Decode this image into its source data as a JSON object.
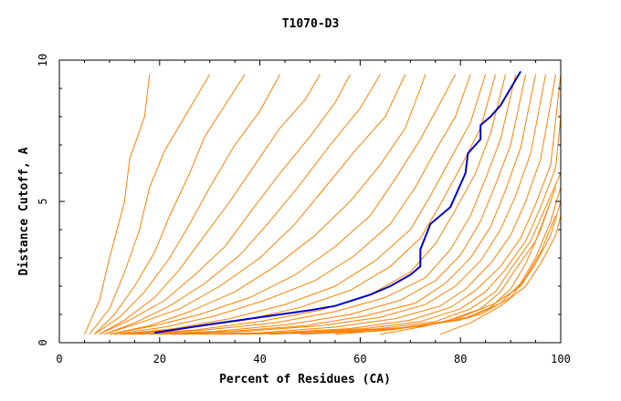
{
  "chart_data": {
    "type": "line",
    "title": "T1070-D3",
    "xlabel": "Percent of Residues (CA)",
    "ylabel": "Distance Cutoff, A",
    "xlim": [
      0,
      100
    ],
    "ylim": [
      0,
      10
    ],
    "x_ticks": [
      0,
      20,
      40,
      60,
      80,
      100
    ],
    "y_ticks": [
      0,
      5,
      10
    ],
    "colors": {
      "background_series": "#ff8000",
      "highlight": "#0000cc",
      "axes": "#000000"
    },
    "grid": false,
    "highlight_series": {
      "points": [
        [
          19,
          0.35
        ],
        [
          30,
          0.65
        ],
        [
          40,
          0.9
        ],
        [
          50,
          1.15
        ],
        [
          55,
          1.3
        ],
        [
          62,
          1.7
        ],
        [
          66,
          2.0
        ],
        [
          70,
          2.4
        ],
        [
          72,
          2.7
        ],
        [
          72,
          3.3
        ],
        [
          74,
          4.2
        ],
        [
          78,
          4.8
        ],
        [
          80,
          5.6
        ],
        [
          81,
          6.0
        ],
        [
          81.5,
          6.7
        ],
        [
          83,
          7.0
        ],
        [
          84,
          7.2
        ],
        [
          84,
          7.7
        ],
        [
          86,
          8.0
        ],
        [
          88,
          8.4
        ],
        [
          90,
          9.0
        ],
        [
          92,
          9.6
        ]
      ]
    },
    "background_series": [
      {
        "points": [
          [
            5,
            0.3
          ],
          [
            8,
            1.5
          ],
          [
            10,
            3.0
          ],
          [
            13,
            5.0
          ],
          [
            14,
            6.5
          ],
          [
            17,
            8.0
          ],
          [
            18,
            9.5
          ]
        ]
      },
      {
        "points": [
          [
            6,
            0.3
          ],
          [
            10,
            1.2
          ],
          [
            13,
            2.5
          ],
          [
            16,
            4.0
          ],
          [
            18,
            5.5
          ],
          [
            21,
            6.8
          ],
          [
            25,
            8.0
          ],
          [
            30,
            9.5
          ]
        ]
      },
      {
        "points": [
          [
            7,
            0.3
          ],
          [
            11,
            1.0
          ],
          [
            15,
            2.0
          ],
          [
            19,
            3.2
          ],
          [
            22,
            4.5
          ],
          [
            26,
            6.0
          ],
          [
            29,
            7.3
          ],
          [
            33,
            8.4
          ],
          [
            37,
            9.5
          ]
        ]
      },
      {
        "points": [
          [
            7,
            0.3
          ],
          [
            12,
            0.9
          ],
          [
            17,
            1.8
          ],
          [
            22,
            3.0
          ],
          [
            26,
            4.2
          ],
          [
            30,
            5.5
          ],
          [
            35,
            7.0
          ],
          [
            40,
            8.2
          ],
          [
            44,
            9.5
          ]
        ]
      },
      {
        "points": [
          [
            8,
            0.3
          ],
          [
            13,
            0.8
          ],
          [
            19,
            1.6
          ],
          [
            24,
            2.6
          ],
          [
            29,
            3.8
          ],
          [
            34,
            5.0
          ],
          [
            39,
            6.3
          ],
          [
            44,
            7.6
          ],
          [
            49,
            8.6
          ],
          [
            52,
            9.5
          ]
        ]
      },
      {
        "points": [
          [
            8,
            0.3
          ],
          [
            14,
            0.8
          ],
          [
            21,
            1.5
          ],
          [
            27,
            2.4
          ],
          [
            33,
            3.4
          ],
          [
            38,
            4.6
          ],
          [
            44,
            6.0
          ],
          [
            50,
            7.3
          ],
          [
            55,
            8.5
          ],
          [
            58,
            9.5
          ]
        ]
      },
      {
        "points": [
          [
            9,
            0.3
          ],
          [
            15,
            0.7
          ],
          [
            22,
            1.3
          ],
          [
            29,
            2.1
          ],
          [
            36,
            3.1
          ],
          [
            42,
            4.3
          ],
          [
            48,
            5.6
          ],
          [
            54,
            7.0
          ],
          [
            60,
            8.3
          ],
          [
            64,
            9.5
          ]
        ]
      },
      {
        "points": [
          [
            9,
            0.3
          ],
          [
            16,
            0.7
          ],
          [
            24,
            1.2
          ],
          [
            32,
            2.0
          ],
          [
            40,
            3.0
          ],
          [
            47,
            4.2
          ],
          [
            53,
            5.5
          ],
          [
            59,
            6.8
          ],
          [
            65,
            8.0
          ],
          [
            69,
            9.5
          ]
        ]
      },
      {
        "points": [
          [
            10,
            0.3
          ],
          [
            18,
            0.6
          ],
          [
            26,
            1.1
          ],
          [
            35,
            1.8
          ],
          [
            43,
            2.7
          ],
          [
            51,
            3.8
          ],
          [
            58,
            5.0
          ],
          [
            64,
            6.3
          ],
          [
            69,
            7.6
          ],
          [
            72,
            9.0
          ],
          [
            73,
            9.5
          ]
        ]
      },
      {
        "points": [
          [
            10,
            0.3
          ],
          [
            19,
            0.6
          ],
          [
            28,
            1.0
          ],
          [
            38,
            1.6
          ],
          [
            47,
            2.4
          ],
          [
            55,
            3.4
          ],
          [
            62,
            4.5
          ],
          [
            67,
            5.8
          ],
          [
            72,
            7.2
          ],
          [
            76,
            8.5
          ],
          [
            79,
            9.5
          ]
        ]
      },
      {
        "points": [
          [
            11,
            0.3
          ],
          [
            21,
            0.55
          ],
          [
            31,
            0.95
          ],
          [
            41,
            1.5
          ],
          [
            51,
            2.2
          ],
          [
            59,
            3.1
          ],
          [
            66,
            4.2
          ],
          [
            71,
            5.5
          ],
          [
            75,
            6.8
          ],
          [
            79,
            8.0
          ],
          [
            82,
            9.5
          ]
        ]
      },
      {
        "points": [
          [
            12,
            0.3
          ],
          [
            23,
            0.5
          ],
          [
            34,
            0.85
          ],
          [
            45,
            1.35
          ],
          [
            55,
            2.0
          ],
          [
            63,
            2.9
          ],
          [
            70,
            4.0
          ],
          [
            74,
            5.2
          ],
          [
            78,
            6.5
          ],
          [
            82,
            7.8
          ],
          [
            85,
            9.5
          ]
        ]
      },
      {
        "points": [
          [
            13,
            0.3
          ],
          [
            25,
            0.5
          ],
          [
            37,
            0.8
          ],
          [
            48,
            1.25
          ],
          [
            58,
            1.85
          ],
          [
            66,
            2.7
          ],
          [
            72,
            3.7
          ],
          [
            76,
            4.9
          ],
          [
            80,
            6.2
          ],
          [
            84,
            7.6
          ],
          [
            87,
            9.5
          ]
        ]
      },
      {
        "points": [
          [
            14,
            0.3
          ],
          [
            27,
            0.45
          ],
          [
            40,
            0.75
          ],
          [
            52,
            1.15
          ],
          [
            62,
            1.7
          ],
          [
            70,
            2.5
          ],
          [
            75,
            3.5
          ],
          [
            79,
            4.7
          ],
          [
            83,
            6.0
          ],
          [
            86,
            7.4
          ],
          [
            89,
            9.5
          ]
        ]
      },
      {
        "points": [
          [
            15,
            0.3
          ],
          [
            29,
            0.45
          ],
          [
            43,
            0.7
          ],
          [
            55,
            1.1
          ],
          [
            65,
            1.6
          ],
          [
            73,
            2.3
          ],
          [
            78,
            3.3
          ],
          [
            82,
            4.5
          ],
          [
            85,
            5.8
          ],
          [
            88,
            7.2
          ],
          [
            91,
            9.5
          ]
        ]
      },
      {
        "points": [
          [
            16,
            0.3
          ],
          [
            31,
            0.4
          ],
          [
            46,
            0.65
          ],
          [
            58,
            1.0
          ],
          [
            68,
            1.5
          ],
          [
            75,
            2.2
          ],
          [
            80,
            3.1
          ],
          [
            84,
            4.3
          ],
          [
            87,
            5.6
          ],
          [
            90,
            7.0
          ],
          [
            93,
            9.5
          ]
        ]
      },
      {
        "points": [
          [
            18,
            0.3
          ],
          [
            34,
            0.4
          ],
          [
            49,
            0.6
          ],
          [
            61,
            0.95
          ],
          [
            71,
            1.4
          ],
          [
            77,
            2.1
          ],
          [
            82,
            3.0
          ],
          [
            86,
            4.1
          ],
          [
            89,
            5.4
          ],
          [
            92,
            6.9
          ],
          [
            95,
            9.5
          ]
        ]
      },
      {
        "points": [
          [
            20,
            0.3
          ],
          [
            37,
            0.4
          ],
          [
            52,
            0.6
          ],
          [
            64,
            0.9
          ],
          [
            73,
            1.35
          ],
          [
            79,
            2.0
          ],
          [
            84,
            2.9
          ],
          [
            88,
            4.0
          ],
          [
            91,
            5.2
          ],
          [
            94,
            6.7
          ],
          [
            97,
            9.5
          ]
        ]
      },
      {
        "points": [
          [
            22,
            0.3
          ],
          [
            40,
            0.35
          ],
          [
            55,
            0.55
          ],
          [
            67,
            0.85
          ],
          [
            76,
            1.3
          ],
          [
            81,
            1.9
          ],
          [
            86,
            2.8
          ],
          [
            90,
            3.8
          ],
          [
            93,
            5.0
          ],
          [
            96,
            6.5
          ],
          [
            99,
            9.5
          ]
        ]
      },
      {
        "points": [
          [
            25,
            0.3
          ],
          [
            43,
            0.35
          ],
          [
            58,
            0.5
          ],
          [
            70,
            0.8
          ],
          [
            78,
            1.25
          ],
          [
            83,
            1.85
          ],
          [
            88,
            2.7
          ],
          [
            92,
            3.7
          ],
          [
            95,
            4.9
          ],
          [
            98,
            6.3
          ],
          [
            100,
            9.5
          ]
        ]
      },
      {
        "points": [
          [
            28,
            0.3
          ],
          [
            46,
            0.35
          ],
          [
            61,
            0.5
          ],
          [
            72,
            0.75
          ],
          [
            80,
            1.2
          ],
          [
            85,
            1.8
          ],
          [
            89,
            2.6
          ],
          [
            93,
            3.6
          ],
          [
            96,
            4.8
          ],
          [
            99,
            6.2
          ],
          [
            100,
            8.0
          ]
        ]
      },
      {
        "points": [
          [
            32,
            0.3
          ],
          [
            50,
            0.35
          ],
          [
            64,
            0.5
          ],
          [
            75,
            0.75
          ],
          [
            82,
            1.2
          ],
          [
            87,
            1.8
          ],
          [
            90,
            2.6
          ],
          [
            94,
            3.6
          ],
          [
            97,
            4.8
          ],
          [
            100,
            6.0
          ]
        ]
      },
      {
        "points": [
          [
            36,
            0.3
          ],
          [
            54,
            0.35
          ],
          [
            67,
            0.5
          ],
          [
            77,
            0.75
          ],
          [
            84,
            1.2
          ],
          [
            88,
            1.8
          ],
          [
            91,
            2.6
          ],
          [
            95,
            3.6
          ],
          [
            98,
            5.0
          ]
        ]
      },
      {
        "points": [
          [
            42,
            0.3
          ],
          [
            58,
            0.4
          ],
          [
            70,
            0.55
          ],
          [
            80,
            0.8
          ],
          [
            86,
            1.25
          ],
          [
            90,
            1.9
          ],
          [
            93,
            2.8
          ],
          [
            96,
            4.0
          ],
          [
            99,
            5.5
          ]
        ]
      },
      {
        "points": [
          [
            48,
            0.3
          ],
          [
            62,
            0.4
          ],
          [
            73,
            0.6
          ],
          [
            82,
            0.9
          ],
          [
            88,
            1.4
          ],
          [
            92,
            2.1
          ],
          [
            95,
            3.0
          ],
          [
            98,
            4.3
          ],
          [
            100,
            5.5
          ]
        ]
      },
      {
        "points": [
          [
            55,
            0.3
          ],
          [
            66,
            0.45
          ],
          [
            76,
            0.7
          ],
          [
            84,
            1.0
          ],
          [
            90,
            1.6
          ],
          [
            93,
            2.3
          ],
          [
            96,
            3.2
          ],
          [
            99,
            4.5
          ]
        ]
      },
      {
        "points": [
          [
            64,
            0.3
          ],
          [
            72,
            0.55
          ],
          [
            80,
            0.9
          ],
          [
            87,
            1.4
          ],
          [
            92,
            2.0
          ],
          [
            95,
            2.8
          ],
          [
            98,
            3.8
          ],
          [
            100,
            5.0
          ]
        ]
      },
      {
        "points": [
          [
            76,
            0.3
          ],
          [
            82,
            0.7
          ],
          [
            88,
            1.3
          ],
          [
            93,
            2.0
          ],
          [
            96,
            2.8
          ],
          [
            99,
            3.8
          ],
          [
            100,
            4.5
          ]
        ]
      }
    ]
  }
}
